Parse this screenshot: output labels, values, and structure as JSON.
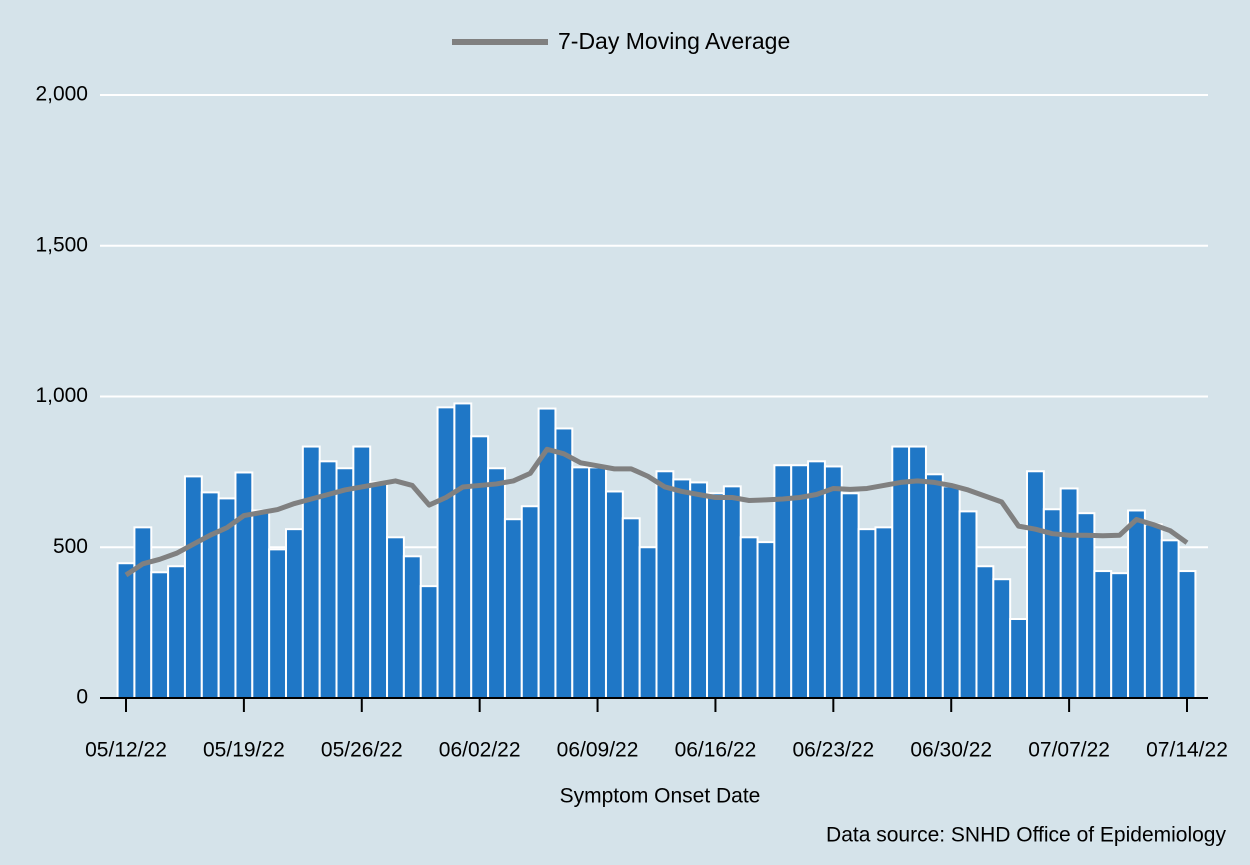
{
  "chart_data": {
    "type": "combo",
    "x_label": "Symptom Onset Date",
    "source": "Data source: SNHD Office of Epidemiology",
    "categories": [
      "05/12/22",
      null,
      null,
      null,
      null,
      null,
      null,
      "05/19/22",
      null,
      null,
      null,
      null,
      null,
      null,
      "05/26/22",
      null,
      null,
      null,
      null,
      null,
      null,
      "06/02/22",
      null,
      null,
      null,
      null,
      null,
      null,
      "06/09/22",
      null,
      null,
      null,
      null,
      null,
      null,
      "06/16/22",
      null,
      null,
      null,
      null,
      null,
      null,
      "06/23/22",
      null,
      null,
      null,
      null,
      null,
      null,
      "06/30/22",
      null,
      null,
      null,
      null,
      null,
      null,
      "07/07/22",
      null,
      null,
      null,
      null,
      null,
      null,
      "07/14/22"
    ],
    "series": [
      {
        "type": "bar",
        "color": "#1f77c6",
        "values": [
          447,
          566,
          417,
          437,
          735,
          682,
          662,
          748,
          622,
          493,
          560,
          834,
          785,
          762,
          834,
          715,
          533,
          470,
          371,
          964,
          977,
          868,
          762,
          593,
          636,
          960,
          894,
          765,
          765,
          685,
          596,
          500,
          752,
          725,
          715,
          679,
          702,
          533,
          517,
          772,
          772,
          785,
          768,
          679,
          560,
          566,
          834,
          834,
          742,
          702,
          619,
          437,
          394,
          262,
          752,
          626,
          695,
          613,
          421,
          414,
          622,
          576,
          523,
          421
        ]
      },
      {
        "type": "line",
        "name": "7-Day Moving Average",
        "color": "#808080",
        "values": [
          408,
          445,
          460,
          480,
          510,
          540,
          565,
          605,
          615,
          625,
          645,
          660,
          675,
          690,
          700,
          710,
          720,
          705,
          640,
          665,
          700,
          705,
          710,
          720,
          745,
          825,
          810,
          780,
          770,
          760,
          760,
          735,
          700,
          685,
          675,
          665,
          665,
          655,
          657,
          660,
          665,
          675,
          695,
          692,
          695,
          705,
          715,
          720,
          715,
          705,
          690,
          670,
          650,
          570,
          560,
          545,
          540,
          540,
          538,
          540,
          592,
          575,
          555,
          515
        ]
      }
    ],
    "ylim": [
      0,
      2000
    ],
    "yticks": [
      0,
      500,
      {
        "value": 1000,
        "label": "1,000"
      },
      {
        "value": 1500,
        "label": "1,500"
      },
      {
        "value": 2000,
        "label": "2,000"
      }
    ],
    "grid": true,
    "legend": "top"
  }
}
